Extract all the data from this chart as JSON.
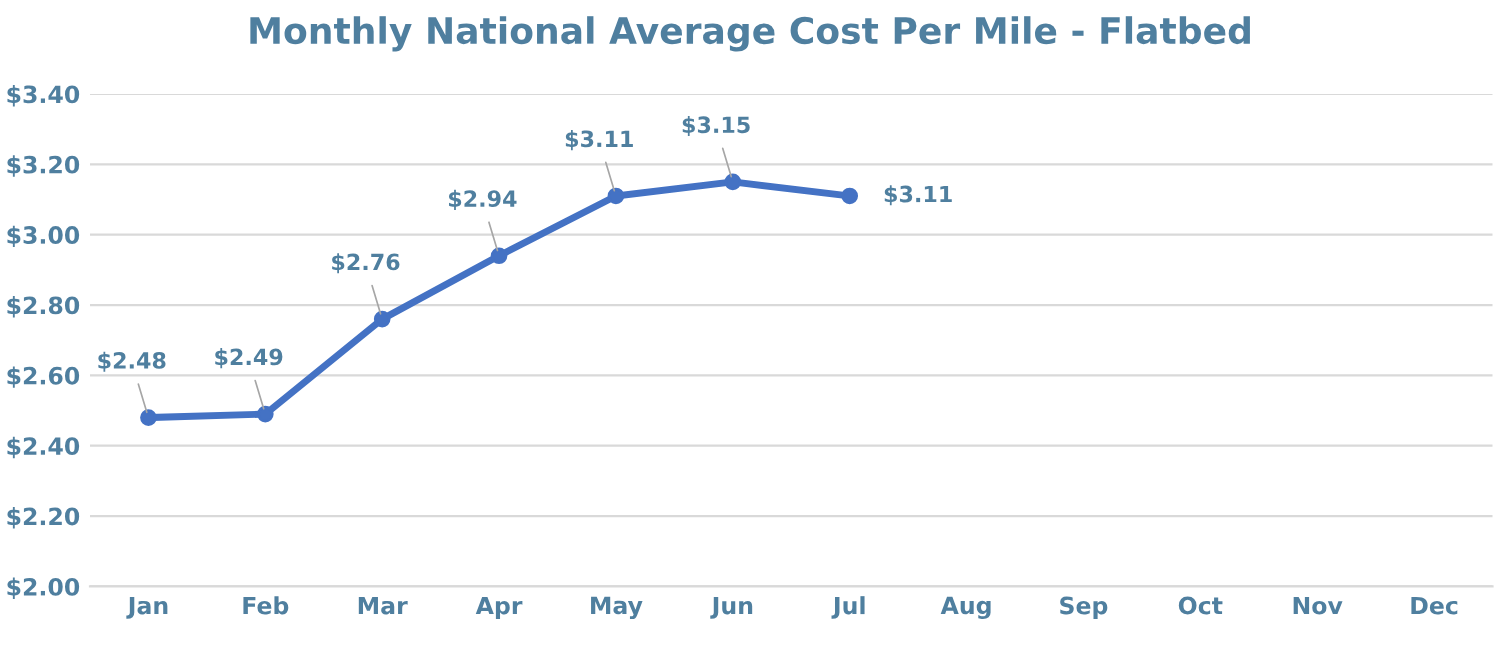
{
  "chart_data": {
    "type": "line",
    "title": "Monthly National Average Cost Per Mile - Flatbed",
    "categories": [
      "Jan",
      "Feb",
      "Mar",
      "Apr",
      "May",
      "Jun",
      "Jul",
      "Aug",
      "Sep",
      "Oct",
      "Nov",
      "Dec"
    ],
    "series": [
      {
        "color": "#4472c4",
        "values": [
          2.48,
          2.49,
          2.76,
          2.94,
          3.11,
          3.15,
          3.11,
          null,
          null,
          null,
          null,
          null
        ],
        "value_labels": [
          "$2.48",
          "$2.49",
          "$2.76",
          "$2.94",
          "$3.11",
          "$3.15",
          "$3.11",
          null,
          null,
          null,
          null,
          null
        ]
      }
    ],
    "ylim": [
      2.0,
      3.4
    ],
    "yticks": [
      {
        "value": 2.0,
        "label": "$2.00"
      },
      {
        "value": 2.2,
        "label": "$2.20"
      },
      {
        "value": 2.4,
        "label": "$2.40"
      },
      {
        "value": 2.6,
        "label": "$2.60"
      },
      {
        "value": 2.8,
        "label": "$2.80"
      },
      {
        "value": 3.0,
        "label": "$3.00"
      },
      {
        "value": 3.2,
        "label": "$3.20"
      },
      {
        "value": 3.4,
        "label": "$3.40"
      }
    ],
    "grid": "y",
    "marker": "circle",
    "line_style": "solid",
    "legend": false
  }
}
